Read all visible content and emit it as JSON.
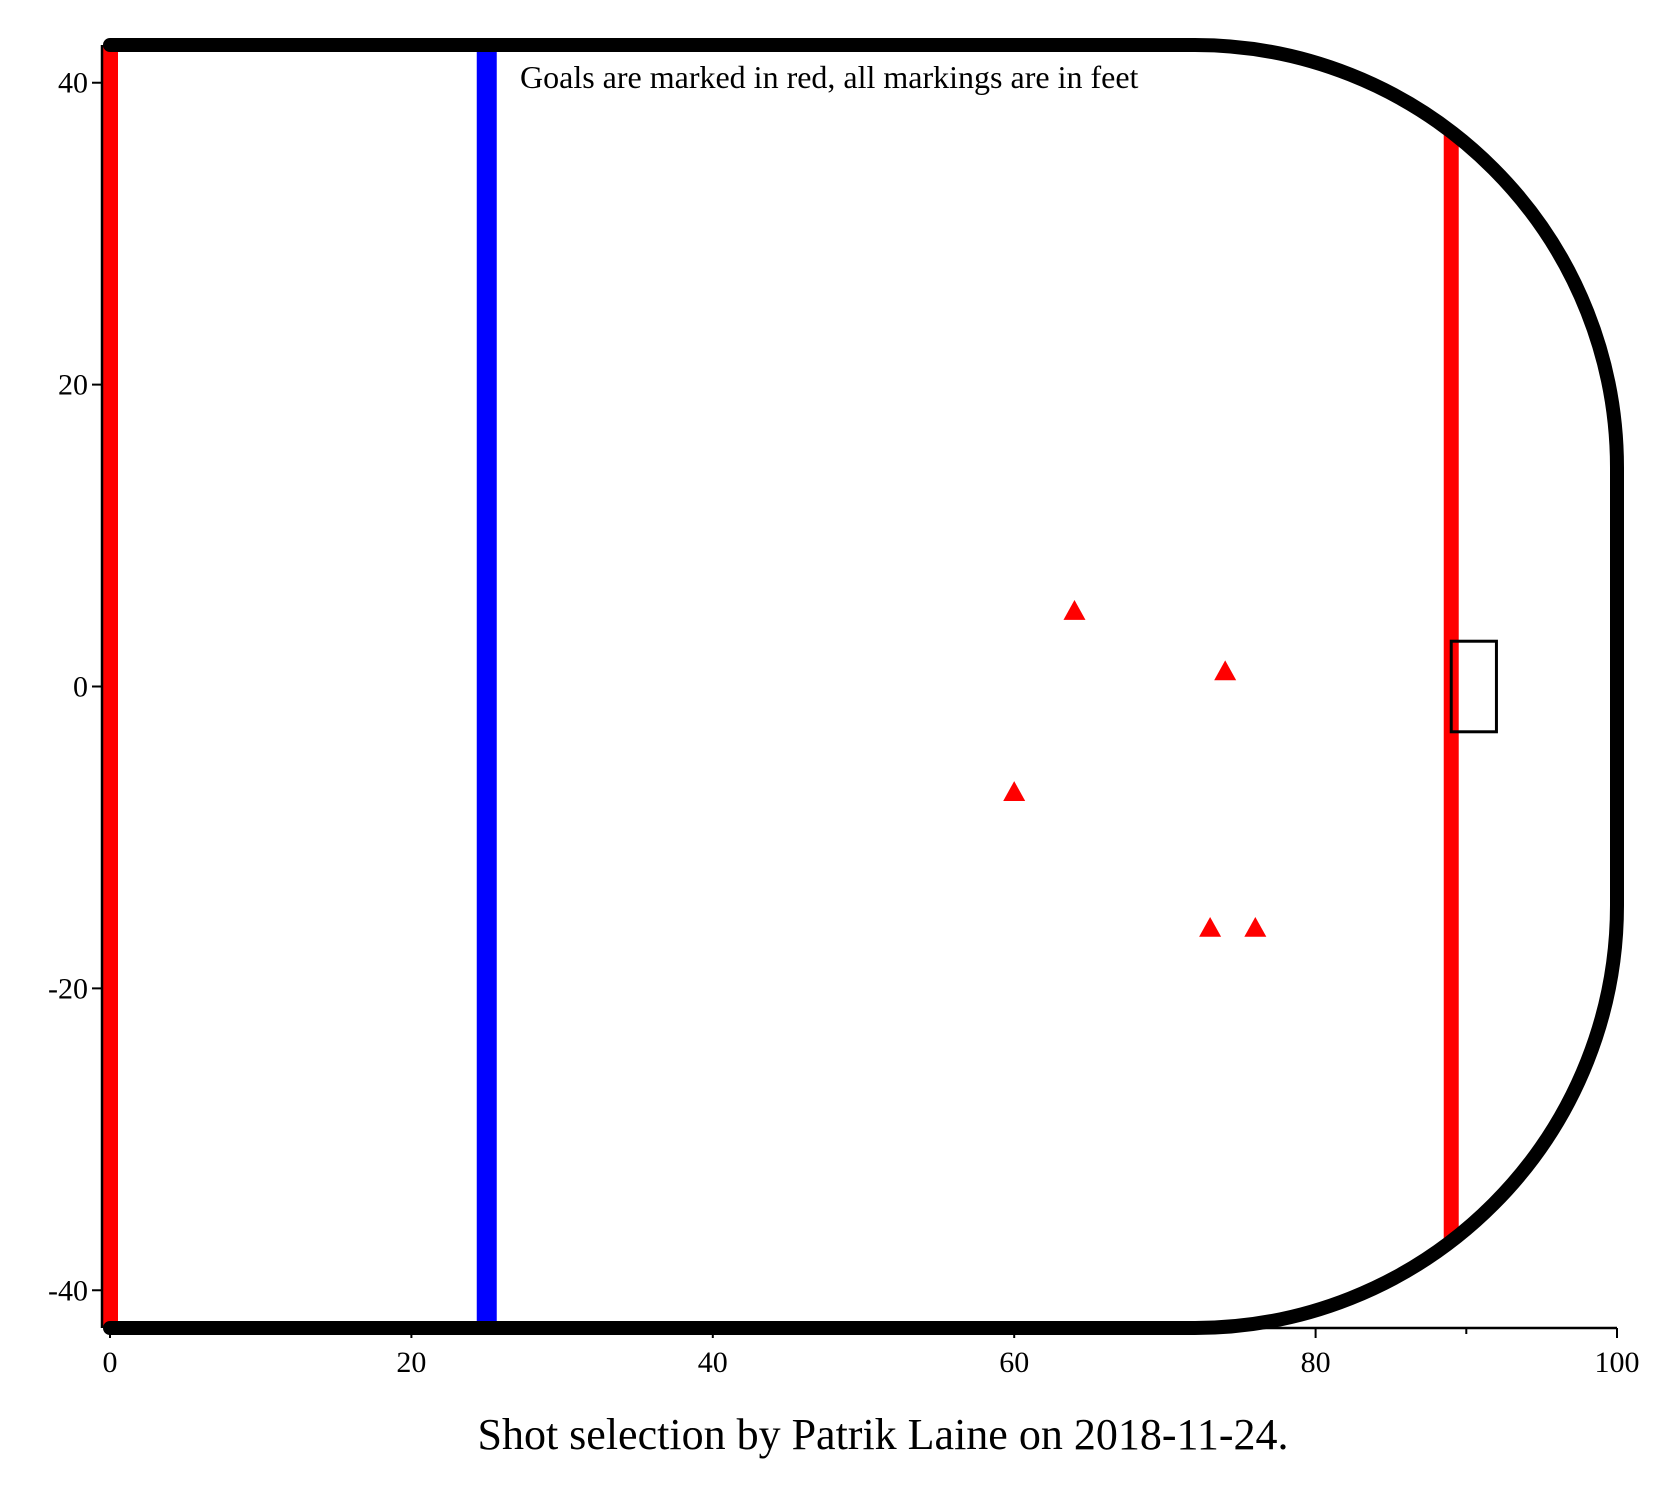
{
  "chart_data": {
    "type": "scatter",
    "title": "",
    "caption": "Shot selection by Patrik Laine on 2018-11-24.",
    "annotation": "Goals are marked in red, all markings are in feet",
    "xlim": [
      0,
      100
    ],
    "ylim": [
      -42.5,
      42.5
    ],
    "x_ticks": [
      0,
      20,
      40,
      60,
      80,
      100
    ],
    "y_ticks": [
      -40,
      -20,
      0,
      20,
      40
    ],
    "grid": false,
    "marker": "triangle",
    "colors": {
      "goal": "#ff0000",
      "center_line": "#ff0000",
      "goal_line": "#ff0000",
      "blue_line": "#0000ff",
      "boards": "#000000",
      "net": "#000000"
    },
    "rink": {
      "center_line_x": 0,
      "blue_line_x": 25,
      "goal_line_x": 89,
      "corner_radius": 28,
      "net": {
        "x0": 89,
        "x1": 92,
        "y0": -3,
        "y1": 3
      }
    },
    "series": [
      {
        "points": [
          {
            "x": 64,
            "y": 5
          },
          {
            "x": 74,
            "y": 1
          },
          {
            "x": 60,
            "y": -7
          },
          {
            "x": 73,
            "y": -16
          },
          {
            "x": 76,
            "y": -16
          }
        ]
      }
    ]
  }
}
